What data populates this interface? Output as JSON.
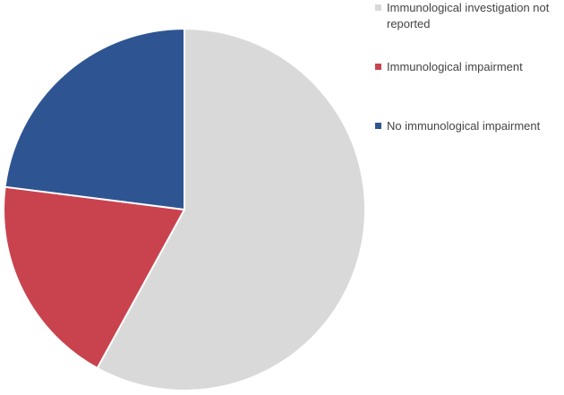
{
  "chart_data": {
    "type": "pie",
    "slices": [
      {
        "label": "Immunological investigation not reported",
        "value": 58,
        "color": "#d9d9d9"
      },
      {
        "label": "Immunological impairment",
        "value": 19,
        "color": "#c9434e"
      },
      {
        "label": "No immunological impairment",
        "value": 23,
        "color": "#2e5592"
      }
    ],
    "start_angle_deg": 0,
    "direction": "clockwise",
    "legend_position": "top-right"
  }
}
